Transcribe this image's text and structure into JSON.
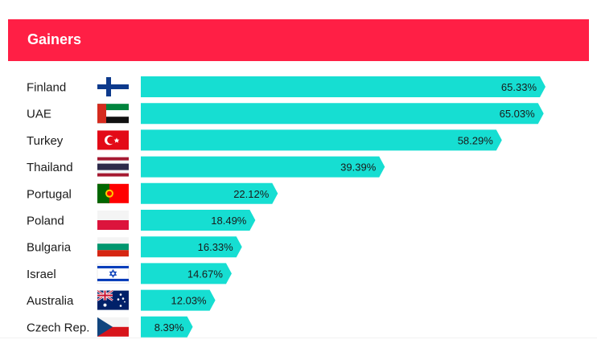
{
  "header": {
    "title": "Gainers"
  },
  "colors": {
    "header": "#ff1f45",
    "bar": "#16ded2",
    "text": "#1a1a1a"
  },
  "chart_data": {
    "type": "bar",
    "orientation": "horizontal",
    "title": "Gainers",
    "categories": [
      "Finland",
      "UAE",
      "Turkey",
      "Thailand",
      "Portugal",
      "Poland",
      "Bulgaria",
      "Israel",
      "Australia",
      "Czech Rep."
    ],
    "values": [
      65.33,
      65.03,
      58.29,
      39.39,
      22.12,
      18.49,
      16.33,
      14.67,
      12.03,
      8.39
    ],
    "value_labels": [
      "65.33%",
      "65.03%",
      "58.29%",
      "39.39%",
      "22.12%",
      "18.49%",
      "16.33%",
      "14.67%",
      "12.03%",
      "8.39%"
    ],
    "flags": [
      "finland-flag-icon",
      "uae-flag-icon",
      "turkey-flag-icon",
      "thailand-flag-icon",
      "portugal-flag-icon",
      "poland-flag-icon",
      "bulgaria-flag-icon",
      "israel-flag-icon",
      "australia-flag-icon",
      "czech-flag-icon"
    ],
    "unit": "%",
    "grid": false,
    "legend": "none"
  }
}
